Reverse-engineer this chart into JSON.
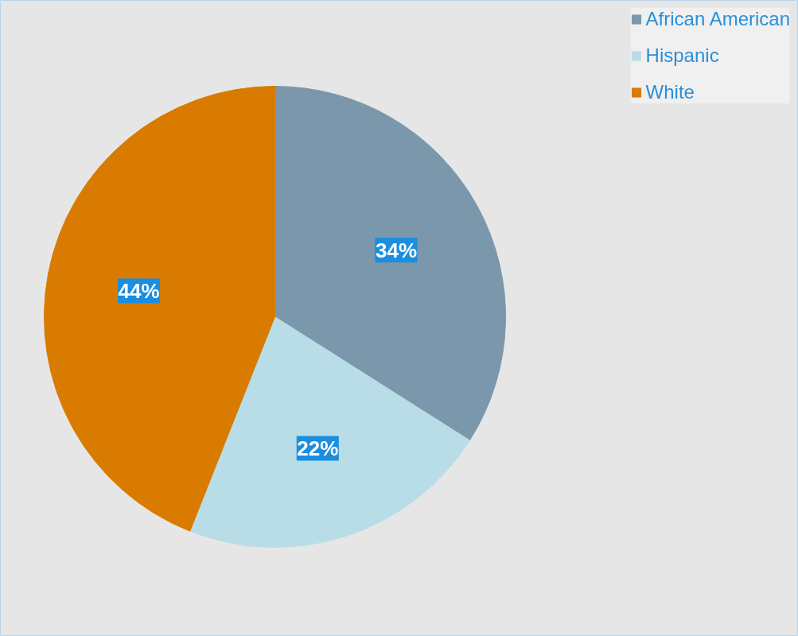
{
  "chart_data": {
    "type": "pie",
    "categories": [
      "African American",
      "Hispanic",
      "White"
    ],
    "values": [
      34,
      22,
      44
    ],
    "colors": [
      "#7b97ab",
      "#b8dde6",
      "#d97b00"
    ],
    "value_labels": [
      "34%",
      "22%",
      "44%"
    ],
    "legend": "top right"
  }
}
